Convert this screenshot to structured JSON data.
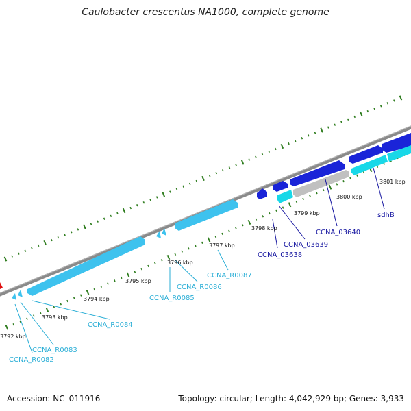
{
  "title": "Caulobacter crescentus NA1000, complete genome",
  "footer": {
    "accession": "Accession: NC_011916",
    "stats": "Topology: circular; Length: 4,042,929 bp; Genes: 3,933"
  },
  "colors": {
    "backbone": "#8a8a8a",
    "tick": "#2f7d1f",
    "rna_gene": "#3ec2ee",
    "cds_forward": "#1a24d8",
    "cds_reverse": "#18d8e8",
    "pseudo": "#c0c0c0",
    "other": "#e01010",
    "label_light": "#2aaed6",
    "label_dark": "#1515a0"
  },
  "kbp_labels": [
    "3792 kbp",
    "3793 kbp",
    "3794 kbp",
    "3795 kbp",
    "3796 kbp",
    "3797 kbp",
    "3798 kbp",
    "3799 kbp",
    "3800 kbp",
    "3801 kbp"
  ],
  "gene_labels": {
    "ccna_r0082": "CCNA_R0082",
    "ccna_r0083": "CCNA_R0083",
    "ccna_r0084": "CCNA_R0084",
    "ccna_r0085": "CCNA_R0085",
    "ccna_r0086": "CCNA_R0086",
    "ccna_r0087": "CCNA_R0087",
    "ccna_03638": "CCNA_03638",
    "ccna_03639": "CCNA_03639",
    "ccna_03640": "CCNA_03640",
    "sdhb": "sdhB"
  }
}
